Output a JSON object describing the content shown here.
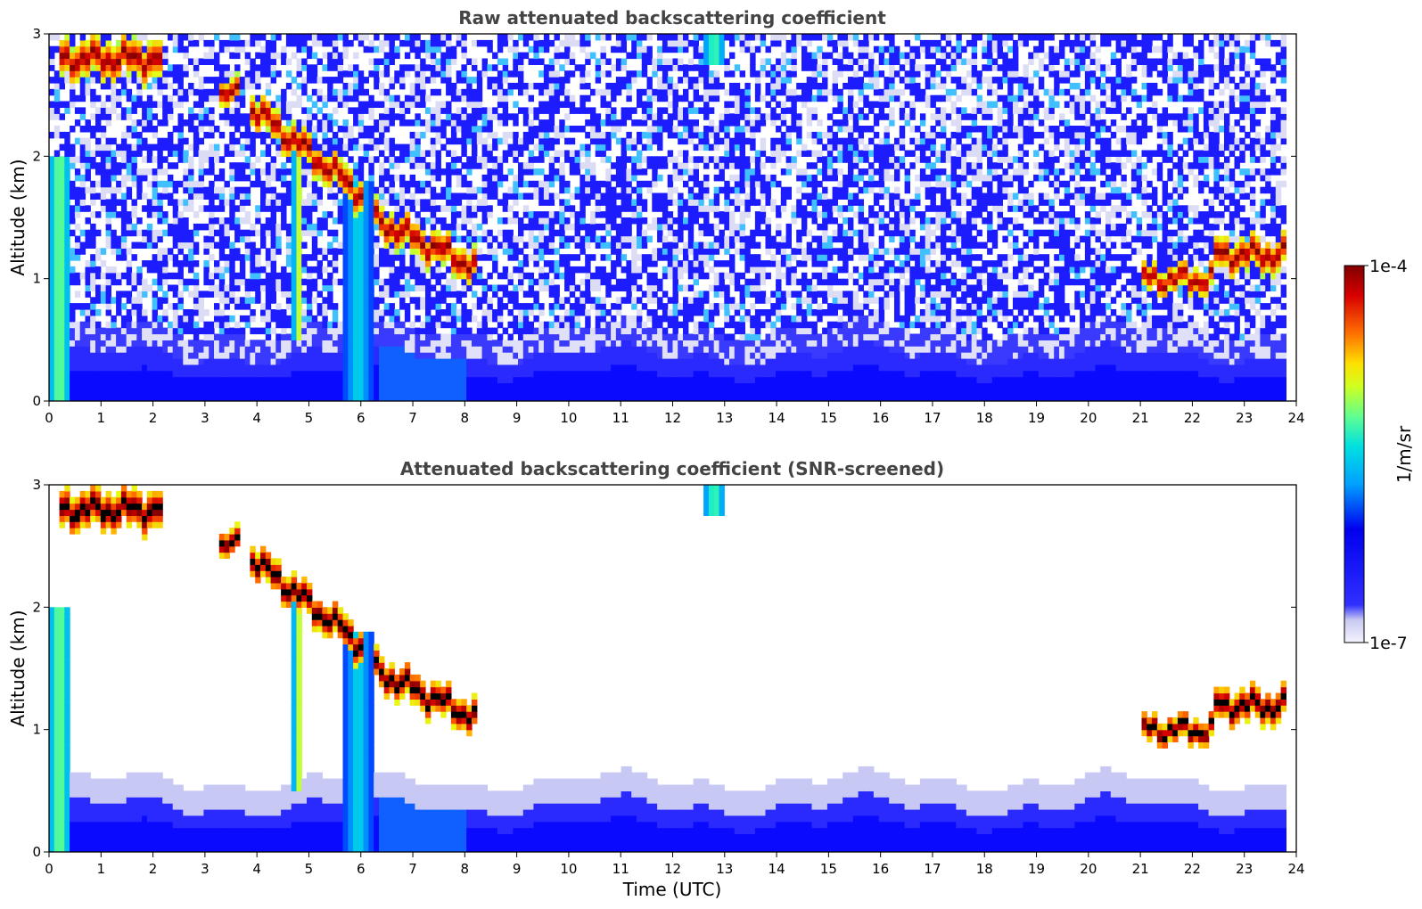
{
  "chart_data": [
    {
      "type": "heatmap",
      "title": "Raw attenuated backscattering coefficient",
      "xlabel": "",
      "ylabel": "Altitude (km)",
      "xlim": [
        0,
        24
      ],
      "ylim": [
        0,
        3
      ],
      "x_ticks": [
        "0",
        "1",
        "2",
        "3",
        "4",
        "5",
        "6",
        "7",
        "8",
        "9",
        "10",
        "11",
        "12",
        "13",
        "14",
        "15",
        "16",
        "17",
        "18",
        "19",
        "20",
        "21",
        "22",
        "23",
        "24"
      ],
      "y_ticks": [
        "0",
        "1",
        "2",
        "3"
      ],
      "data_end_hour": 23.8,
      "background": "noisy (blue speckle aloft, dense blue boundary layer below ~0.4 km)",
      "features": [
        {
          "kind": "layer",
          "x": [
            0.2,
            2.2
          ],
          "y_center": 2.8,
          "thickness": 0.3,
          "intensity": 1.0
        },
        {
          "kind": "layer",
          "x": [
            3.3,
            3.7
          ],
          "y_center": 2.5,
          "thickness": 0.2,
          "intensity": 1.0
        },
        {
          "kind": "descending_layer",
          "x": [
            3.9,
            6.0
          ],
          "y_start": 2.4,
          "y_end": 1.7,
          "thickness": 0.25,
          "intensity": 1.0
        },
        {
          "kind": "descending_layer",
          "x": [
            6.2,
            8.2
          ],
          "y_start": 1.5,
          "y_end": 1.1,
          "thickness": 0.25,
          "intensity": 1.0
        },
        {
          "kind": "layer",
          "x": [
            21.0,
            22.4
          ],
          "y_center": 1.0,
          "thickness": 0.2,
          "intensity": 1.0
        },
        {
          "kind": "layer",
          "x": [
            22.4,
            23.8
          ],
          "y_center": 1.2,
          "thickness": 0.25,
          "intensity": 1.0
        },
        {
          "kind": "plume",
          "x": [
            12.6,
            13.0
          ],
          "y_top": 3.0,
          "y_bottom": 2.75,
          "intensity": 0.5
        },
        {
          "kind": "fallstreak",
          "x": [
            4.7,
            4.9
          ],
          "y_top": 2.2,
          "y_bottom": 0.5,
          "intensity": 0.6
        },
        {
          "kind": "fallstreak",
          "x": [
            5.7,
            6.2
          ],
          "y_top": 1.8,
          "y_bottom": 0.0,
          "intensity": 0.4
        },
        {
          "kind": "fallstreak",
          "x": [
            0.0,
            0.4
          ],
          "y_top": 2.0,
          "y_bottom": 0.0,
          "intensity": 0.55
        }
      ]
    },
    {
      "type": "heatmap",
      "title": "Attenuated backscattering coefficient (SNR-screened)",
      "xlabel": "Time (UTC)",
      "ylabel": "Altitude (km)",
      "xlim": [
        0,
        24
      ],
      "ylim": [
        0,
        3
      ],
      "x_ticks": [
        "0",
        "1",
        "2",
        "3",
        "4",
        "5",
        "6",
        "7",
        "8",
        "9",
        "10",
        "11",
        "12",
        "13",
        "14",
        "15",
        "16",
        "17",
        "18",
        "19",
        "20",
        "21",
        "22",
        "23",
        "24"
      ],
      "y_ticks": [
        "0",
        "1",
        "2",
        "3"
      ],
      "data_end_hour": 23.8,
      "background": "screened (white above ~0.5 km, blue boundary layer below)",
      "features": [
        {
          "kind": "layer",
          "x": [
            0.2,
            2.2
          ],
          "y_center": 2.8,
          "thickness": 0.3,
          "intensity": 1.1
        },
        {
          "kind": "layer",
          "x": [
            3.3,
            3.7
          ],
          "y_center": 2.5,
          "thickness": 0.2,
          "intensity": 1.1
        },
        {
          "kind": "descending_layer",
          "x": [
            3.9,
            6.0
          ],
          "y_start": 2.4,
          "y_end": 1.7,
          "thickness": 0.25,
          "intensity": 1.1
        },
        {
          "kind": "descending_layer",
          "x": [
            6.2,
            8.2
          ],
          "y_start": 1.5,
          "y_end": 1.1,
          "thickness": 0.25,
          "intensity": 1.1
        },
        {
          "kind": "layer",
          "x": [
            21.0,
            22.4
          ],
          "y_center": 1.0,
          "thickness": 0.2,
          "intensity": 1.1
        },
        {
          "kind": "layer",
          "x": [
            22.4,
            23.8
          ],
          "y_center": 1.2,
          "thickness": 0.25,
          "intensity": 1.1
        },
        {
          "kind": "plume",
          "x": [
            12.6,
            13.0
          ],
          "y_top": 3.0,
          "y_bottom": 2.75,
          "intensity": 0.5
        },
        {
          "kind": "fallstreak",
          "x": [
            4.7,
            4.9
          ],
          "y_top": 2.2,
          "y_bottom": 0.5,
          "intensity": 0.6
        },
        {
          "kind": "fallstreak",
          "x": [
            5.7,
            6.2
          ],
          "y_top": 1.8,
          "y_bottom": 0.0,
          "intensity": 0.4
        },
        {
          "kind": "fallstreak",
          "x": [
            0.0,
            0.4
          ],
          "y_top": 2.0,
          "y_bottom": 0.0,
          "intensity": 0.55
        }
      ]
    }
  ],
  "colorbar": {
    "label": "1/m/sr",
    "max_label": "1e-4",
    "min_label": "1e-7",
    "colormap": "jet",
    "stops": [
      "#ffffff",
      "#c8c8f0",
      "#0000ff",
      "#00d0ff",
      "#60ff90",
      "#ffff00",
      "#ff6000",
      "#d00000",
      "#800000"
    ]
  }
}
